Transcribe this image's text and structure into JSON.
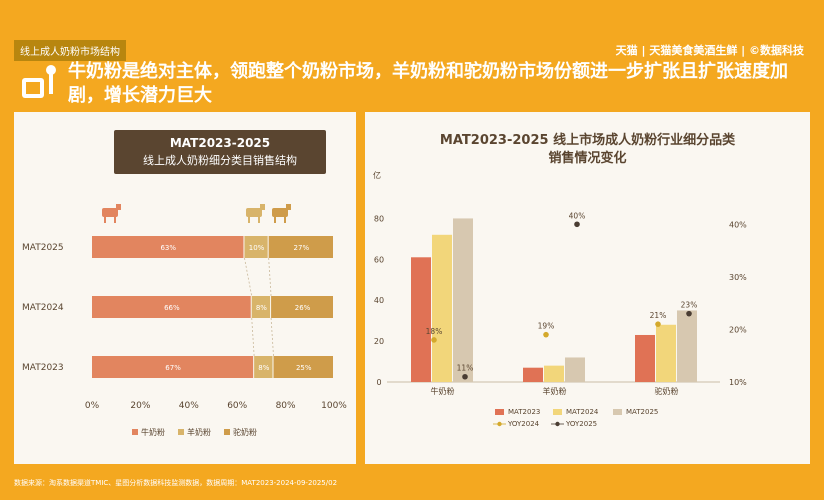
{
  "header": {
    "breadcrumb": "线上成人奶粉市场结构",
    "brand": "天猫 | 天猫美食美酒生鲜 | ©数据科技",
    "headline": "牛奶粉是绝对主体，领跑整个奶粉市场，羊奶粉和驼奶粉市场份额进一步扩张且扩张速度加剧，增长潜力巨大"
  },
  "footer": {
    "source": "数据来源：淘系数据渠道TMIC、星图分析数据科技监测数据，数据周期：MAT2023-2024-09-2025/02"
  },
  "left_box": {
    "title": "MAT2023-2025",
    "subtitle": "线上成人奶粉细分类目销售结构"
  },
  "right_title": {
    "line1": "MAT2023-2025 线上市场成人奶粉行业细分品类",
    "line2": "销售情况变化"
  },
  "colors": {
    "cow": "#e07255",
    "goat": "#f2d67a",
    "camel": "#d7c8b0",
    "bar_cow": "#e2855f",
    "bar_goat": "#d8b46a",
    "bar_camel": "#cf9c4a",
    "y24": "#d4a92c",
    "y25": "#4a3d33"
  },
  "chart_data": [
    {
      "type": "bar",
      "orientation": "horizontal",
      "stacked": true,
      "categories": [
        "MAT2025",
        "MAT2024",
        "MAT2023"
      ],
      "series": [
        {
          "name": "牛奶粉",
          "values": [
            63,
            66,
            67
          ],
          "labels": [
            "63%",
            "66%",
            "67%"
          ]
        },
        {
          "name": "羊奶粉",
          "values": [
            10,
            8,
            8
          ],
          "labels": [
            "10%",
            "8%",
            "8%"
          ]
        },
        {
          "name": "驼奶粉",
          "values": [
            27,
            26,
            25
          ],
          "labels": [
            "27%",
            "26%",
            "25%"
          ]
        }
      ],
      "xticks": [
        "0%",
        "20%",
        "40%",
        "60%",
        "80%",
        "100%"
      ],
      "xlim": [
        0,
        100
      ]
    },
    {
      "type": "bar",
      "categories": [
        "牛奶粉",
        "羊奶粉",
        "驼奶粉"
      ],
      "series": [
        {
          "name": "MAT2023",
          "values": [
            61,
            7,
            23
          ]
        },
        {
          "name": "MAT2024",
          "values": [
            72,
            8,
            28
          ]
        },
        {
          "name": "MAT2025",
          "values": [
            80,
            12,
            35
          ]
        }
      ],
      "line_series": [
        {
          "name": "YOY2024",
          "values": [
            18,
            19,
            21
          ],
          "labels": [
            "18%",
            "19%",
            "21%"
          ]
        },
        {
          "name": "YOY2025",
          "values": [
            11,
            40,
            23
          ],
          "labels": [
            "11%",
            "40%",
            "23%"
          ]
        }
      ],
      "left_unit": "亿",
      "left_ticks": [
        "0",
        "20",
        "40",
        "60",
        "80"
      ],
      "ylim": [
        0,
        90
      ],
      "right_ticks": [
        "10%",
        "20%",
        "30%",
        "40%"
      ],
      "y2lim": [
        10,
        45
      ],
      "legend": [
        "MAT2023",
        "MAT2024",
        "MAT2025",
        "YOY2024",
        "YOY2025"
      ]
    }
  ]
}
